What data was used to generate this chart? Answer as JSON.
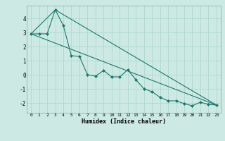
{
  "xlabel": "Humidex (Indice chaleur)",
  "xlim": [
    -0.5,
    23.5
  ],
  "ylim": [
    -2.7,
    4.9
  ],
  "xticks": [
    0,
    1,
    2,
    3,
    4,
    5,
    6,
    7,
    8,
    9,
    10,
    11,
    12,
    13,
    14,
    15,
    16,
    17,
    18,
    19,
    20,
    21,
    22,
    23
  ],
  "yticks": [
    -2,
    -1,
    0,
    1,
    2,
    3,
    4
  ],
  "bg_color": "#cce9e4",
  "line_color": "#1a7a6a",
  "grid_color": "#b0d8d0",
  "line1_x": [
    0,
    1,
    2,
    3,
    4,
    5,
    6,
    7,
    8,
    9,
    10,
    11,
    12,
    13,
    14,
    15,
    16,
    17,
    18,
    19,
    20,
    21,
    22,
    23
  ],
  "line1_y": [
    2.9,
    2.9,
    2.9,
    4.6,
    3.5,
    1.35,
    1.3,
    0.0,
    -0.1,
    0.3,
    -0.15,
    -0.15,
    0.35,
    -0.35,
    -1.0,
    -1.2,
    -1.6,
    -1.85,
    -1.85,
    -2.05,
    -2.2,
    -1.95,
    -2.1,
    -2.15
  ],
  "line2_x": [
    0,
    3,
    23
  ],
  "line2_y": [
    2.9,
    4.6,
    -2.15
  ],
  "line3_x": [
    0,
    23
  ],
  "line3_y": [
    2.9,
    -2.15
  ]
}
